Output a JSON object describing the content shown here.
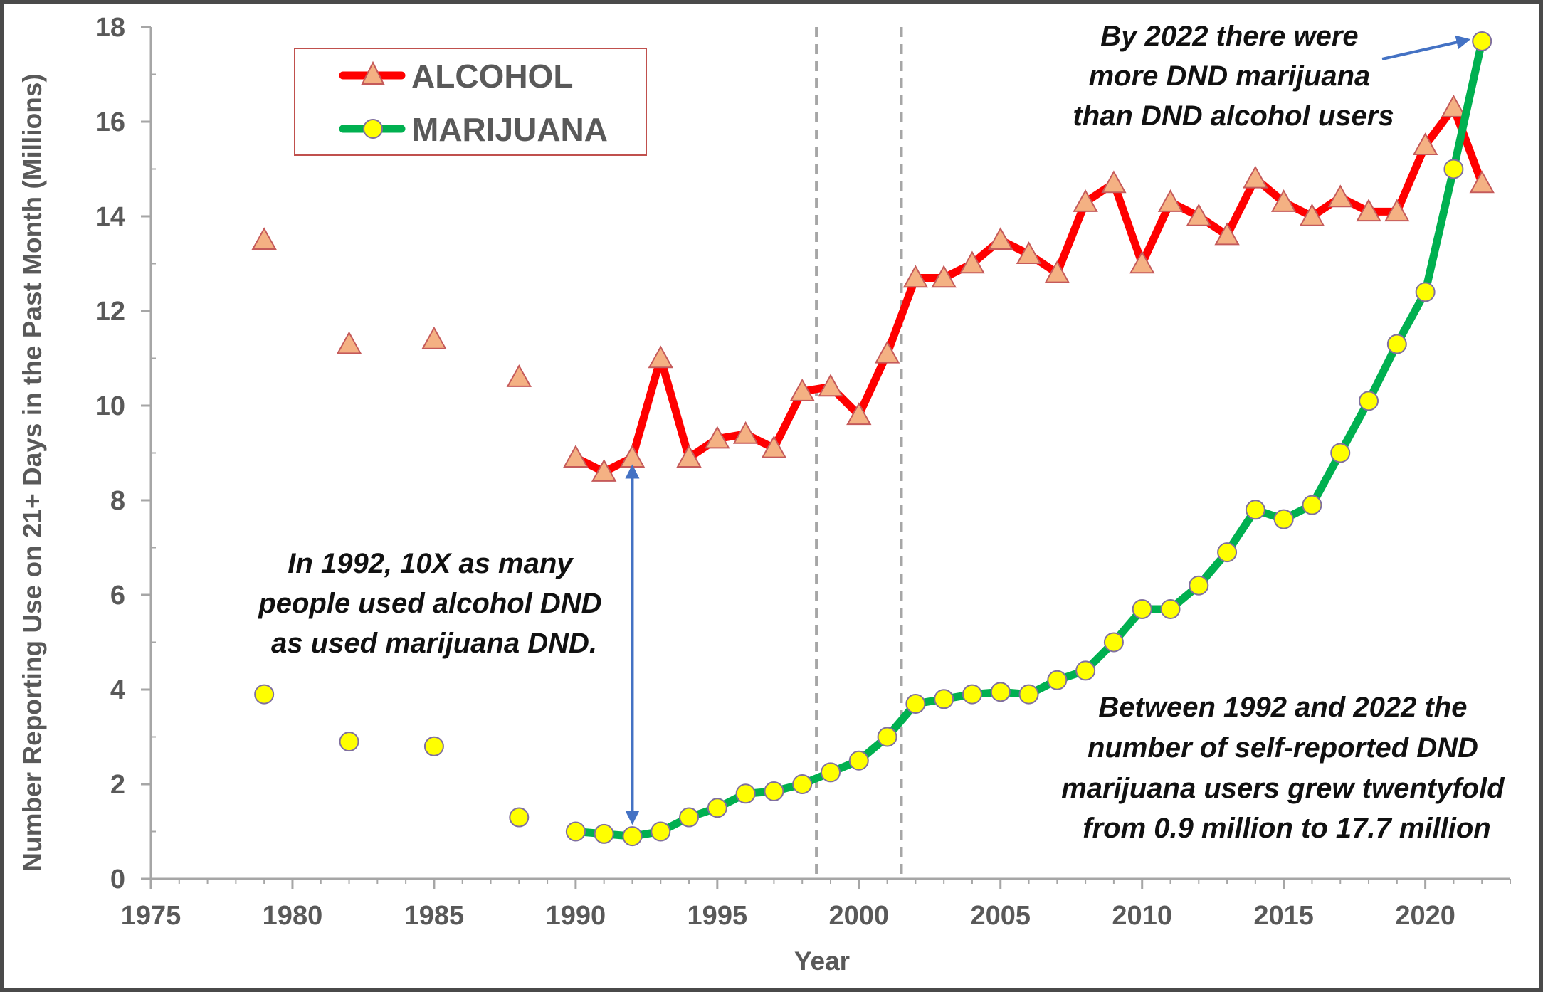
{
  "chart_data": {
    "type": "line",
    "xlabel": "Year",
    "ylabel": "Number Reporting Use on 21+ Days in the Past Month (Millions)",
    "xlim": [
      1975,
      2023
    ],
    "ylim": [
      0,
      18
    ],
    "x_ticks": [
      1975,
      1980,
      1985,
      1990,
      1995,
      2000,
      2005,
      2010,
      2015,
      2020
    ],
    "y_ticks": [
      0,
      2,
      4,
      6,
      8,
      10,
      12,
      14,
      16,
      18
    ],
    "grid": false,
    "legend_position": "top-left",
    "vertical_reference_lines": [
      1998.5,
      2001.5
    ],
    "series": [
      {
        "name": "ALCOHOL",
        "line_color": "#ff0000",
        "marker": "triangle",
        "marker_fill": "#f4b183",
        "marker_stroke": "#c55a5a",
        "unconnected_points": [
          {
            "x": 1979,
            "y": 13.5
          },
          {
            "x": 1982,
            "y": 11.3
          },
          {
            "x": 1985,
            "y": 11.4
          },
          {
            "x": 1988,
            "y": 10.6
          }
        ],
        "points": [
          {
            "x": 1990,
            "y": 8.9
          },
          {
            "x": 1991,
            "y": 8.6
          },
          {
            "x": 1992,
            "y": 8.9
          },
          {
            "x": 1993,
            "y": 11.0
          },
          {
            "x": 1994,
            "y": 8.9
          },
          {
            "x": 1995,
            "y": 9.3
          },
          {
            "x": 1996,
            "y": 9.4
          },
          {
            "x": 1997,
            "y": 9.1
          },
          {
            "x": 1998,
            "y": 10.3
          },
          {
            "x": 1999,
            "y": 10.4
          },
          {
            "x": 2000,
            "y": 9.8
          },
          {
            "x": 2001,
            "y": 11.1
          },
          {
            "x": 2002,
            "y": 12.7
          },
          {
            "x": 2003,
            "y": 12.7
          },
          {
            "x": 2004,
            "y": 13.0
          },
          {
            "x": 2005,
            "y": 13.5
          },
          {
            "x": 2006,
            "y": 13.2
          },
          {
            "x": 2007,
            "y": 12.8
          },
          {
            "x": 2008,
            "y": 14.3
          },
          {
            "x": 2009,
            "y": 14.7
          },
          {
            "x": 2010,
            "y": 13.0
          },
          {
            "x": 2011,
            "y": 14.3
          },
          {
            "x": 2012,
            "y": 14.0
          },
          {
            "x": 2013,
            "y": 13.6
          },
          {
            "x": 2014,
            "y": 14.8
          },
          {
            "x": 2015,
            "y": 14.3
          },
          {
            "x": 2016,
            "y": 14.0
          },
          {
            "x": 2017,
            "y": 14.4
          },
          {
            "x": 2018,
            "y": 14.1
          },
          {
            "x": 2019,
            "y": 14.1
          },
          {
            "x": 2020,
            "y": 15.5
          },
          {
            "x": 2021,
            "y": 16.3
          },
          {
            "x": 2022,
            "y": 14.7
          }
        ]
      },
      {
        "name": "MARIJUANA",
        "line_color": "#00b050",
        "marker": "circle",
        "marker_fill": "#ffff00",
        "marker_stroke": "#7f6f9f",
        "unconnected_points": [
          {
            "x": 1979,
            "y": 3.9
          },
          {
            "x": 1982,
            "y": 2.9
          },
          {
            "x": 1985,
            "y": 2.8
          },
          {
            "x": 1988,
            "y": 1.3
          }
        ],
        "points": [
          {
            "x": 1990,
            "y": 1.0
          },
          {
            "x": 1991,
            "y": 0.95
          },
          {
            "x": 1992,
            "y": 0.9
          },
          {
            "x": 1993,
            "y": 1.0
          },
          {
            "x": 1994,
            "y": 1.3
          },
          {
            "x": 1995,
            "y": 1.5
          },
          {
            "x": 1996,
            "y": 1.8
          },
          {
            "x": 1997,
            "y": 1.85
          },
          {
            "x": 1998,
            "y": 2.0
          },
          {
            "x": 1999,
            "y": 2.25
          },
          {
            "x": 2000,
            "y": 2.5
          },
          {
            "x": 2001,
            "y": 3.0
          },
          {
            "x": 2002,
            "y": 3.7
          },
          {
            "x": 2003,
            "y": 3.8
          },
          {
            "x": 2004,
            "y": 3.9
          },
          {
            "x": 2005,
            "y": 3.95
          },
          {
            "x": 2006,
            "y": 3.9
          },
          {
            "x": 2007,
            "y": 4.2
          },
          {
            "x": 2008,
            "y": 4.4
          },
          {
            "x": 2009,
            "y": 5.0
          },
          {
            "x": 2010,
            "y": 5.7
          },
          {
            "x": 2011,
            "y": 5.7
          },
          {
            "x": 2012,
            "y": 6.2
          },
          {
            "x": 2013,
            "y": 6.9
          },
          {
            "x": 2014,
            "y": 7.8
          },
          {
            "x": 2015,
            "y": 7.6
          },
          {
            "x": 2016,
            "y": 7.9
          },
          {
            "x": 2017,
            "y": 9.0
          },
          {
            "x": 2018,
            "y": 10.1
          },
          {
            "x": 2019,
            "y": 11.3
          },
          {
            "x": 2020,
            "y": 12.4
          },
          {
            "x": 2021,
            "y": 15.0
          },
          {
            "x": 2022,
            "y": 17.7
          }
        ]
      }
    ],
    "annotations": [
      {
        "id": "ann-1992",
        "lines": [
          "In 1992, 10X as many",
          "people used alcohol DND",
          "as used marijuana DND."
        ],
        "arrow": {
          "x": 1992,
          "y_from": 8.7,
          "y_to": 1.2,
          "double": true
        }
      },
      {
        "id": "ann-2022",
        "lines": [
          "By 2022  there were",
          "more DND marijuana",
          "than DND alcohol users"
        ],
        "arrow": {
          "to_x": 2021.5,
          "to_y": 17.7
        }
      },
      {
        "id": "ann-growth",
        "lines": [
          "Between 1992 and 2022 the",
          "number of self-reported DND",
          "marijuana users grew twentyfold",
          "from 0.9 million to 17.7 million"
        ]
      }
    ]
  }
}
